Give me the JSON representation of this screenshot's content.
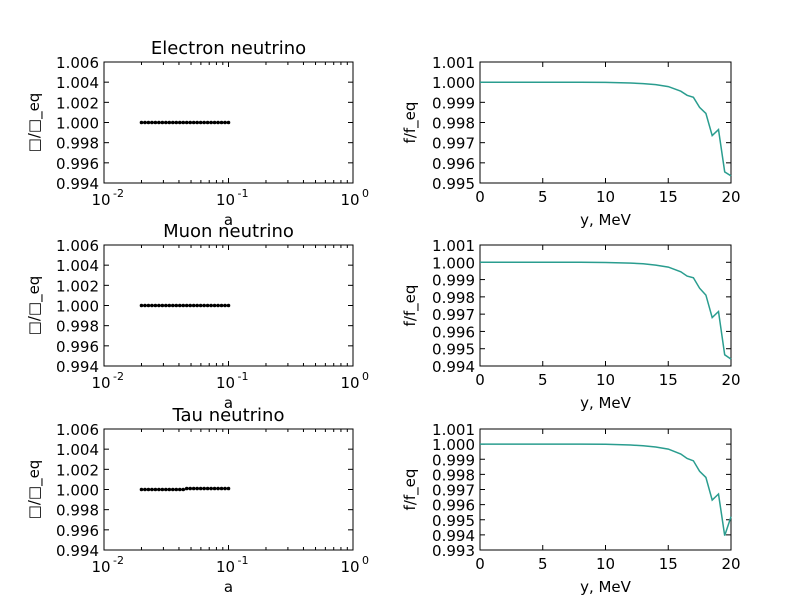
{
  "chart_data": [
    {
      "type": "scatter",
      "title": "Electron neutrino",
      "xlabel": "a",
      "ylabel": "□/□_eq",
      "xscale": "log",
      "xlim": [
        0.01,
        1
      ],
      "ylim": [
        0.994,
        1.006
      ],
      "yticks": [
        "1.006",
        "1.004",
        "1.002",
        "1.000",
        "0.998",
        "0.996",
        "0.994"
      ],
      "xticks": [
        {
          "base": "10",
          "exp": "-2"
        },
        {
          "base": "10",
          "exp": "-1"
        },
        {
          "base": "10",
          "exp": "0"
        }
      ],
      "series": [
        {
          "color": "#000000",
          "segments": [
            {
              "x_from": 0.02,
              "x_to": 0.1,
              "y": 1.0
            }
          ],
          "points": 26
        }
      ]
    },
    {
      "type": "line",
      "title": "",
      "xlabel": "y, MeV",
      "ylabel": "f/f_eq",
      "xlim": [
        0,
        20
      ],
      "ylim": [
        0.995,
        1.001
      ],
      "yticks": [
        "1.001",
        "1.000",
        "0.999",
        "0.998",
        "0.997",
        "0.996",
        "0.995"
      ],
      "xticks": [
        "0",
        "5",
        "10",
        "15",
        "20"
      ],
      "series": [
        {
          "color": "#2a9d8f",
          "x": [
            0,
            2,
            4,
            6,
            8,
            10,
            12,
            13,
            14,
            15,
            16,
            16.5,
            17,
            17.5,
            18,
            18.5,
            19,
            19.5,
            20
          ],
          "y": [
            1.0,
            1.0,
            1.0,
            1.0,
            1.0,
            0.99999,
            0.99996,
            0.99993,
            0.99988,
            0.99978,
            0.99955,
            0.99935,
            0.99925,
            0.99875,
            0.99845,
            0.99735,
            0.99765,
            0.99555,
            0.99535
          ]
        }
      ]
    },
    {
      "type": "scatter",
      "title": "Muon neutrino",
      "xlabel": "a",
      "ylabel": "□/□_eq",
      "xscale": "log",
      "xlim": [
        0.01,
        1
      ],
      "ylim": [
        0.994,
        1.006
      ],
      "yticks": [
        "1.006",
        "1.004",
        "1.002",
        "1.000",
        "0.998",
        "0.996",
        "0.994"
      ],
      "xticks": [
        {
          "base": "10",
          "exp": "-2"
        },
        {
          "base": "10",
          "exp": "-1"
        },
        {
          "base": "10",
          "exp": "0"
        }
      ],
      "series": [
        {
          "color": "#000000",
          "segments": [
            {
              "x_from": 0.02,
              "x_to": 0.1,
              "y": 1.0
            }
          ],
          "points": 26
        }
      ]
    },
    {
      "type": "line",
      "title": "",
      "xlabel": "y, MeV",
      "ylabel": "f/f_eq",
      "xlim": [
        0,
        20
      ],
      "ylim": [
        0.994,
        1.001
      ],
      "yticks": [
        "1.001",
        "1.000",
        "0.999",
        "0.998",
        "0.997",
        "0.996",
        "0.995",
        "0.994"
      ],
      "xticks": [
        "0",
        "5",
        "10",
        "15",
        "20"
      ],
      "series": [
        {
          "color": "#2a9d8f",
          "x": [
            0,
            2,
            4,
            6,
            8,
            10,
            12,
            13,
            14,
            15,
            16,
            16.5,
            17,
            17.5,
            18,
            18.5,
            19,
            19.5,
            20
          ],
          "y": [
            1.0,
            1.0,
            1.0,
            1.0,
            1.0,
            0.99999,
            0.99995,
            0.99991,
            0.99984,
            0.99972,
            0.99945,
            0.9992,
            0.9991,
            0.9985,
            0.9981,
            0.9968,
            0.99715,
            0.99465,
            0.9944
          ]
        }
      ]
    },
    {
      "type": "scatter",
      "title": "Tau neutrino",
      "xlabel": "a",
      "ylabel": "□/□_eq",
      "xscale": "log",
      "xlim": [
        0.01,
        1
      ],
      "ylim": [
        0.994,
        1.006
      ],
      "yticks": [
        "1.006",
        "1.004",
        "1.002",
        "1.000",
        "0.998",
        "0.996",
        "0.994"
      ],
      "xticks": [
        {
          "base": "10",
          "exp": "-2"
        },
        {
          "base": "10",
          "exp": "-1"
        },
        {
          "base": "10",
          "exp": "0"
        }
      ],
      "series": [
        {
          "color": "#000000",
          "segments": [
            {
              "x_from": 0.02,
              "x_to": 0.045,
              "y": 1.0
            },
            {
              "x_from": 0.046,
              "x_to": 0.1,
              "y": 1.0001
            }
          ],
          "points": 26
        }
      ]
    },
    {
      "type": "line",
      "title": "",
      "xlabel": "y, MeV",
      "ylabel": "f/f_eq",
      "xlim": [
        0,
        20
      ],
      "ylim": [
        0.993,
        1.001
      ],
      "yticks": [
        "1.001",
        "1.000",
        "0.999",
        "0.998",
        "0.997",
        "0.996",
        "0.995",
        "0.994",
        "0.993"
      ],
      "xticks": [
        "0",
        "5",
        "10",
        "15",
        "20"
      ],
      "series": [
        {
          "color": "#2a9d8f",
          "x": [
            0,
            2,
            4,
            6,
            8,
            10,
            12,
            13,
            14,
            15,
            16,
            16.5,
            17,
            17.5,
            18,
            18.5,
            19,
            19.5,
            20
          ],
          "y": [
            1.0,
            1.0,
            1.0,
            1.0,
            1.0,
            0.99999,
            0.99994,
            0.99989,
            0.99981,
            0.99967,
            0.99935,
            0.99905,
            0.9989,
            0.9982,
            0.9978,
            0.9963,
            0.9967,
            0.99395,
            0.9952
          ]
        }
      ]
    }
  ]
}
